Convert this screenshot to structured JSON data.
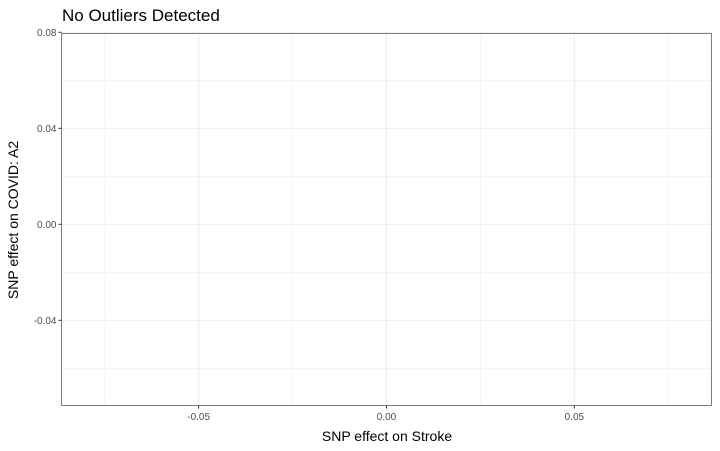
{
  "chart_data": {
    "type": "scatter",
    "title": "No Outliers Detected",
    "xlabel": "SNP effect on Stroke",
    "ylabel": "SNP effect on COVID: A2",
    "xlim": [
      -0.0865,
      0.0865
    ],
    "ylim": [
      -0.0755,
      0.0795
    ],
    "x_ticks": [
      -0.05,
      0.0,
      0.05
    ],
    "x_tick_labels": [
      "-0.05",
      "0.00",
      "0.05"
    ],
    "y_ticks": [
      -0.04,
      0.0,
      0.04,
      0.08
    ],
    "y_tick_labels": [
      "-0.04",
      "0.00",
      "0.04",
      "0.08"
    ],
    "x_minor_ticks": [
      -0.075,
      -0.025,
      0.025,
      0.075
    ],
    "y_minor_ticks": [
      -0.06,
      -0.02,
      0.02,
      0.06
    ],
    "grid": true,
    "series": [
      {
        "x": [],
        "y": []
      }
    ]
  }
}
